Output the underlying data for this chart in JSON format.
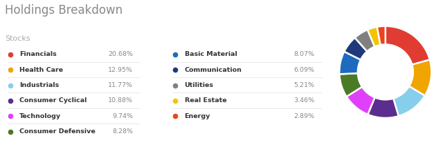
{
  "title": "Holdings Breakdown",
  "subtitle": "Stocks",
  "categories": [
    "Financials",
    "Health Care",
    "Industrials",
    "Consumer Cyclical",
    "Technology",
    "Consumer Defensive",
    "Basic Material",
    "Communication",
    "Utilities",
    "Real Estate",
    "Energy"
  ],
  "values": [
    20.68,
    12.95,
    11.77,
    10.88,
    9.74,
    8.28,
    8.07,
    6.09,
    5.21,
    3.46,
    2.89
  ],
  "pct_labels": [
    "20.68%",
    "12.95%",
    "11.77%",
    "10.88%",
    "9.74%",
    "8.28%",
    "8.07%",
    "6.09%",
    "5.21%",
    "3.46%",
    "2.89%"
  ],
  "colors": [
    "#e03c31",
    "#f0a500",
    "#87ceeb",
    "#5b2d8e",
    "#e040fb",
    "#4b7a27",
    "#1e6abf",
    "#1e3a7a",
    "#808080",
    "#f5c400",
    "#e8451e"
  ],
  "bg_color": "#ffffff",
  "title_color": "#888888",
  "subtitle_color": "#aaaaaa",
  "label_color": "#333333",
  "pct_color": "#888888",
  "separator_color": "#e0e0e0",
  "col1_items": [
    0,
    1,
    2,
    3,
    4,
    5
  ],
  "col2_items": [
    6,
    7,
    8,
    9,
    10
  ]
}
